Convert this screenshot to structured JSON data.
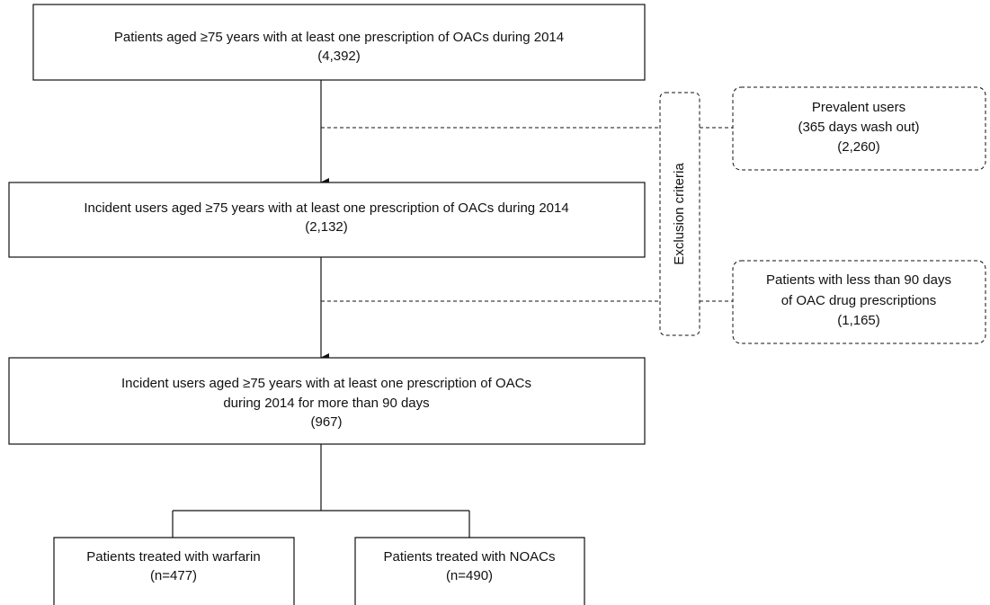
{
  "nodes": [
    {
      "lines": [
        "Patients aged ≥75 years with at least one prescription of OACs during 2014",
        "(4,392)"
      ]
    },
    {
      "lines": [
        "Incident users aged ≥75 years with at least one prescription of OACs during 2014",
        "(2,132)"
      ]
    },
    {
      "lines": [
        "Incident users aged ≥75 years with at least one prescription of OACs",
        "during 2014 for more than 90 days",
        "(967)"
      ]
    },
    {
      "lines": [
        "Patients treated with warfarin",
        "(n=477)"
      ]
    },
    {
      "lines": [
        "Patients treated with NOACs",
        "(n=490)"
      ]
    }
  ],
  "exclusion_label": "Exclusion criteria",
  "exclusions": [
    {
      "lines": [
        "Prevalent users",
        "(365 days wash out)",
        "(2,260)"
      ]
    },
    {
      "lines": [
        "Patients with less than 90 days",
        "of OAC drug prescriptions",
        "(1,165)"
      ]
    }
  ]
}
